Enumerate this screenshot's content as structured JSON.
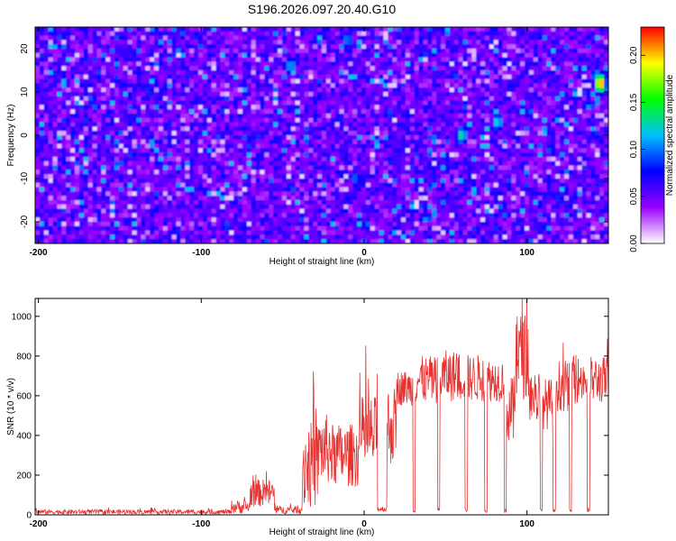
{
  "title": "S196.2026.097.20.40.G10",
  "chart_data": [
    {
      "type": "heatmap",
      "xlabel": "Height of straight line (km)",
      "ylabel": "Frequency (Hz)",
      "xlim": [
        -202,
        150
      ],
      "ylim": [
        -25,
        25
      ],
      "xticks": [
        -200,
        -100,
        0,
        100
      ],
      "yticks": [
        -20,
        -10,
        0,
        10,
        20
      ],
      "colorbar": {
        "label": "Normalized spectral amplitude",
        "range": [
          0,
          0.23
        ],
        "ticks": [
          "0.00",
          "0.05",
          "0.10",
          "0.15",
          "0.20"
        ],
        "colormap": [
          "#ffffff",
          "#9900ff",
          "#0000ff",
          "#00c0ff",
          "#00ff00",
          "#ffff00",
          "#ff0000"
        ]
      },
      "features": [
        {
          "x": -45,
          "y": 16,
          "value": 0.12
        },
        {
          "x": 60,
          "y": 0,
          "value": 0.14
        },
        {
          "x": 82,
          "y": 3,
          "value": 0.13
        },
        {
          "x": 145,
          "y": 12,
          "value": 0.22
        },
        {
          "x": -10,
          "y": 22,
          "value": 0.11
        },
        {
          "x": -5,
          "y": -10,
          "value": 0.1
        }
      ]
    },
    {
      "type": "line",
      "xlabel": "Height of straight line (km)",
      "ylabel": "SNR (10 * v/v)",
      "xlim": [
        -202,
        150
      ],
      "ylim": [
        0,
        1090
      ],
      "xticks": [
        -200,
        -100,
        0,
        100
      ],
      "yticks": [
        0,
        200,
        400,
        600,
        800,
        1000
      ],
      "series_color": "#e8312f",
      "segments": [
        {
          "x0": -202,
          "x1": -82,
          "level": 15,
          "noise": 12
        },
        {
          "x0": -82,
          "x1": -70,
          "level": 40,
          "noise": 35
        },
        {
          "x0": -70,
          "x1": -55,
          "level": 110,
          "noise": 70
        },
        {
          "x0": -55,
          "x1": -38,
          "level": 25,
          "noise": 20
        },
        {
          "x0": -38,
          "x1": -28,
          "level": 250,
          "noise": 220
        },
        {
          "x0": -28,
          "x1": -20,
          "level": 330,
          "noise": 180
        },
        {
          "x0": -20,
          "x1": -3,
          "level": 300,
          "noise": 160
        },
        {
          "x0": -3,
          "x1": 8,
          "level": 400,
          "noise": 200
        },
        {
          "x0": 8,
          "x1": 14,
          "level": 30,
          "noise": 15
        },
        {
          "x0": 14,
          "x1": 20,
          "level": 450,
          "noise": 200
        },
        {
          "x0": 20,
          "x1": 30,
          "level": 640,
          "noise": 90
        },
        {
          "x0": 30,
          "x1": 31.5,
          "level": 20,
          "noise": 10
        },
        {
          "x0": 31.5,
          "x1": 45,
          "level": 680,
          "noise": 120
        },
        {
          "x0": 45,
          "x1": 46.5,
          "level": 25,
          "noise": 10
        },
        {
          "x0": 46.5,
          "x1": 62,
          "level": 700,
          "noise": 130
        },
        {
          "x0": 62,
          "x1": 63.5,
          "level": 25,
          "noise": 10
        },
        {
          "x0": 63.5,
          "x1": 74,
          "level": 690,
          "noise": 120
        },
        {
          "x0": 74,
          "x1": 75.5,
          "level": 20,
          "noise": 10
        },
        {
          "x0": 75.5,
          "x1": 86,
          "level": 680,
          "noise": 110
        },
        {
          "x0": 86,
          "x1": 87.5,
          "level": 20,
          "noise": 10
        },
        {
          "x0": 87.5,
          "x1": 93,
          "level": 520,
          "noise": 180
        },
        {
          "x0": 93,
          "x1": 101,
          "level": 800,
          "noise": 220
        },
        {
          "x0": 101,
          "x1": 108,
          "level": 600,
          "noise": 140
        },
        {
          "x0": 108,
          "x1": 109.5,
          "level": 20,
          "noise": 10
        },
        {
          "x0": 109.5,
          "x1": 116,
          "level": 560,
          "noise": 130
        },
        {
          "x0": 116,
          "x1": 117.5,
          "level": 20,
          "noise": 10
        },
        {
          "x0": 117.5,
          "x1": 126,
          "level": 650,
          "noise": 130
        },
        {
          "x0": 126,
          "x1": 127.5,
          "level": 20,
          "noise": 10
        },
        {
          "x0": 127.5,
          "x1": 137,
          "level": 680,
          "noise": 120
        },
        {
          "x0": 137,
          "x1": 138.5,
          "level": 20,
          "noise": 10
        },
        {
          "x0": 138.5,
          "x1": 150,
          "level": 680,
          "noise": 120
        }
      ],
      "spikes": [
        {
          "x": -60,
          "y": 220
        },
        {
          "x": -31,
          "y": 650
        },
        {
          "x": 8,
          "y": 710
        },
        {
          "x": 94,
          "y": 1000
        },
        {
          "x": 97,
          "y": 1090
        },
        {
          "x": 93.5,
          "y": 960
        }
      ]
    }
  ]
}
